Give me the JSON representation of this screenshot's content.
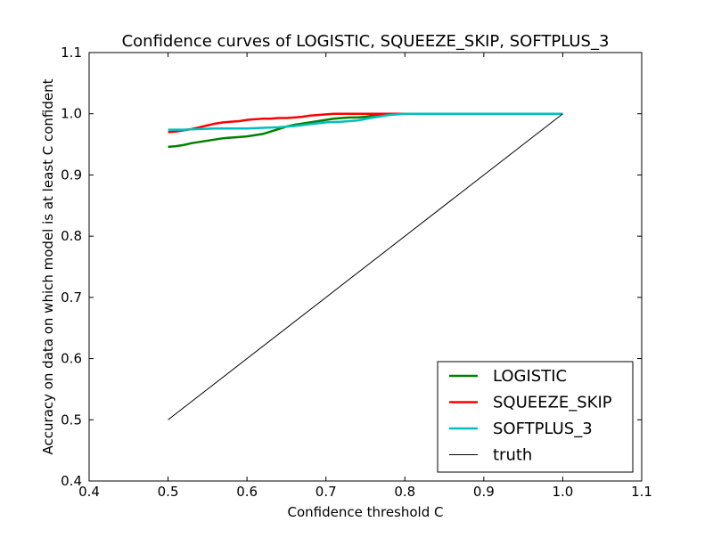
{
  "chart_data": {
    "type": "line",
    "title": "Confidence curves of LOGISTIC, SQUEEZE_SKIP, SOFTPLUS_3",
    "xlabel": "Confidence threshold C",
    "ylabel": "Accuracy on data on which model is at least C confident",
    "xlim": [
      0.4,
      1.1
    ],
    "ylim": [
      0.4,
      1.1
    ],
    "x_ticks": [
      "0.4",
      "0.5",
      "0.6",
      "0.7",
      "0.8",
      "0.9",
      "1.0",
      "1.1"
    ],
    "y_ticks": [
      "0.4",
      "0.5",
      "0.6",
      "0.7",
      "0.8",
      "0.9",
      "1.0",
      "1.1"
    ],
    "grid": false,
    "legend_position": "lower-right",
    "series": [
      {
        "name": "LOGISTIC",
        "color": "#008000",
        "x": [
          0.5,
          0.51,
          0.52,
          0.53,
          0.54,
          0.55,
          0.56,
          0.57,
          0.58,
          0.59,
          0.6,
          0.61,
          0.62,
          0.63,
          0.64,
          0.65,
          0.66,
          0.67,
          0.68,
          0.69,
          0.7,
          0.71,
          0.72,
          0.73,
          0.74,
          0.75,
          0.76,
          0.77,
          0.78,
          0.79,
          0.8,
          0.85,
          0.9,
          0.95,
          1.0
        ],
        "y": [
          0.946,
          0.947,
          0.949,
          0.952,
          0.954,
          0.956,
          0.958,
          0.96,
          0.961,
          0.962,
          0.963,
          0.965,
          0.967,
          0.971,
          0.975,
          0.979,
          0.982,
          0.984,
          0.986,
          0.988,
          0.99,
          0.992,
          0.993,
          0.994,
          0.994,
          0.995,
          0.997,
          0.998,
          0.999,
          1.0,
          1.0,
          1.0,
          1.0,
          1.0,
          1.0
        ]
      },
      {
        "name": "SQUEEZE_SKIP",
        "color": "#ff0000",
        "x": [
          0.5,
          0.51,
          0.52,
          0.53,
          0.54,
          0.55,
          0.56,
          0.57,
          0.58,
          0.59,
          0.6,
          0.61,
          0.62,
          0.63,
          0.64,
          0.65,
          0.66,
          0.67,
          0.68,
          0.69,
          0.7,
          0.71,
          0.72,
          0.73,
          0.75,
          0.8,
          0.85,
          0.9,
          0.95,
          1.0
        ],
        "y": [
          0.97,
          0.971,
          0.973,
          0.975,
          0.978,
          0.981,
          0.984,
          0.986,
          0.987,
          0.988,
          0.99,
          0.991,
          0.992,
          0.992,
          0.993,
          0.993,
          0.994,
          0.995,
          0.997,
          0.998,
          0.999,
          1.0,
          1.0,
          1.0,
          1.0,
          1.0,
          1.0,
          1.0,
          1.0,
          1.0
        ]
      },
      {
        "name": "SOFTPLUS_3",
        "color": "#00bfbf",
        "x": [
          0.5,
          0.52,
          0.54,
          0.56,
          0.58,
          0.6,
          0.62,
          0.64,
          0.66,
          0.68,
          0.7,
          0.72,
          0.74,
          0.76,
          0.78,
          0.8,
          0.85,
          0.9,
          0.95,
          1.0
        ],
        "y": [
          0.974,
          0.974,
          0.975,
          0.976,
          0.976,
          0.976,
          0.977,
          0.978,
          0.98,
          0.983,
          0.986,
          0.987,
          0.989,
          0.994,
          0.998,
          1.0,
          1.0,
          1.0,
          1.0,
          1.0
        ]
      },
      {
        "name": "truth",
        "color": "#000000",
        "x": [
          0.5,
          1.0
        ],
        "y": [
          0.5,
          1.0
        ]
      }
    ]
  }
}
